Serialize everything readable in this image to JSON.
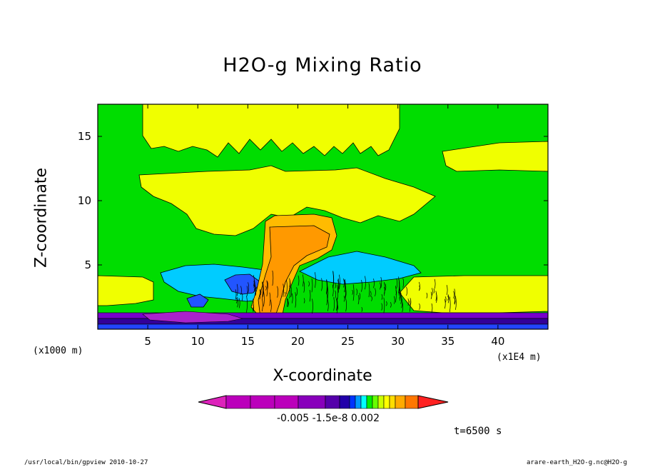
{
  "chart_data": {
    "type": "heatmap",
    "title": "H2O-g Mixing Ratio",
    "xlabel": "X-coordinate",
    "ylabel": "Z-coordinate",
    "x_unit_left": "(x1000 m)",
    "x_unit_right": "(x1E4 m)",
    "xlim": [
      0,
      45
    ],
    "ylim": [
      0,
      17.5
    ],
    "x_ticks": [
      5,
      10,
      15,
      20,
      25,
      30,
      35,
      40
    ],
    "y_ticks": [
      5,
      10,
      15
    ],
    "colorbar_labels": "-0.005 -1.5e-8  0.002",
    "time_label": "t=6500 s",
    "colors": {
      "background_field": "#00dd00",
      "yellow": "#f0ff00",
      "light_yellow": "#ffff66",
      "orange": "#ff9900",
      "light_orange": "#ffbb00",
      "cyan": "#00ccff",
      "blue": "#2255ff",
      "purple": "#7700cc",
      "navy": "#330099",
      "magenta": "#dd22bb"
    }
  },
  "footer": {
    "left": "/usr/local/bin/gpview  2010-10-27",
    "right": "arare-earth_H2O-g.nc@H2O-g"
  }
}
